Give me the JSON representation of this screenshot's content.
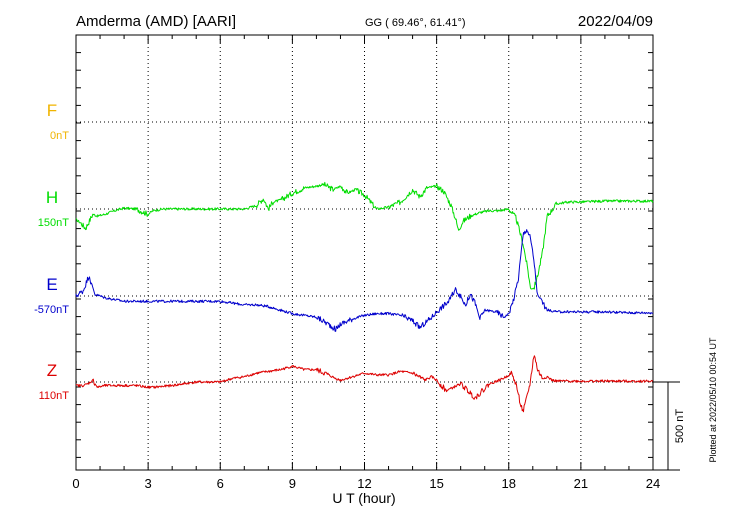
{
  "header": {
    "station": "Amderma (AMD)  [AARI]",
    "coords": "GG ( 69.46°,  61.41°)",
    "date": "2022/04/09"
  },
  "side_note": "Plotted at 2022/05/10 00:54 UT",
  "scale_label": "500 nT",
  "chart_data": {
    "type": "line",
    "xlabel": "U T (hour)",
    "xlim": [
      0,
      24
    ],
    "xticks": [
      "0",
      "3",
      "6",
      "9",
      "12",
      "15",
      "18",
      "21",
      "24"
    ],
    "y_units": "nT (offset from component baseline; 500 nT scale bar)",
    "scale_bar_nT": 500,
    "colors": {
      "F": "#f0b400",
      "H": "#00dd00",
      "E": "#0000cc",
      "Z": "#dd0000"
    },
    "components": [
      {
        "letter": "F",
        "baseline": "0nT"
      },
      {
        "letter": "H",
        "baseline": "150nT"
      },
      {
        "letter": "E",
        "baseline": "-570nT"
      },
      {
        "letter": "Z",
        "baseline": "110nT"
      }
    ],
    "series": [
      {
        "key": "H",
        "x": [
          0,
          0.2,
          0.4,
          0.55,
          0.7,
          0.9,
          1.2,
          1.6,
          2.0,
          2.5,
          3.0,
          3.2,
          3.6,
          4.2,
          5.0,
          5.5,
          6.0,
          6.5,
          7.0,
          7.5,
          7.8,
          8.0,
          8.2,
          8.5,
          9.0,
          9.5,
          10.0,
          10.3,
          10.7,
          11.0,
          11.3,
          11.6,
          12.0,
          12.5,
          13.0,
          13.5,
          14.0,
          14.3,
          14.6,
          15.0,
          15.3,
          15.6,
          15.8,
          15.9,
          16.1,
          16.4,
          16.8,
          17.2,
          17.6,
          18.0,
          18.3,
          18.6,
          18.8,
          18.9,
          19.05,
          19.2,
          19.4,
          19.6,
          20.0,
          20.5,
          21.0,
          22.0,
          23.0,
          24.0
        ],
        "y": [
          -60,
          -80,
          -110,
          -70,
          -30,
          -40,
          -30,
          -10,
          5,
          0,
          -30,
          -10,
          0,
          0,
          0,
          0,
          0,
          0,
          0,
          20,
          60,
          0,
          40,
          50,
          90,
          120,
          130,
          140,
          110,
          130,
          90,
          110,
          80,
          0,
          10,
          40,
          110,
          70,
          120,
          130,
          100,
          20,
          -60,
          -120,
          -70,
          -40,
          -20,
          -10,
          -10,
          0,
          -50,
          -200,
          -350,
          -450,
          -450,
          -380,
          -250,
          -40,
          30,
          40,
          40,
          45,
          45,
          45
        ]
      },
      {
        "key": "E",
        "x": [
          0,
          0.3,
          0.55,
          0.65,
          0.8,
          1.2,
          2.0,
          3.0,
          4.0,
          5.0,
          6.0,
          7.0,
          7.5,
          8.0,
          8.5,
          9.0,
          9.5,
          10.0,
          10.5,
          10.8,
          11.0,
          11.5,
          12.0,
          12.5,
          13.0,
          13.5,
          14.0,
          14.3,
          14.8,
          15.0,
          15.5,
          15.8,
          16.2,
          16.4,
          16.6,
          16.8,
          17.0,
          17.5,
          17.8,
          18.0,
          18.2,
          18.4,
          18.6,
          18.75,
          18.9,
          19.05,
          19.2,
          19.35,
          19.5,
          19.6,
          20.0,
          21.0,
          22.0,
          23.0,
          24.0
        ],
        "y": [
          0,
          30,
          120,
          60,
          10,
          -10,
          -30,
          -30,
          -30,
          -30,
          -30,
          -50,
          -50,
          -60,
          -80,
          -100,
          -110,
          -120,
          -160,
          -190,
          -160,
          -130,
          -110,
          -100,
          -100,
          -110,
          -140,
          -180,
          -120,
          -90,
          -30,
          40,
          -50,
          10,
          -40,
          -130,
          -80,
          -90,
          -120,
          -100,
          -20,
          100,
          350,
          380,
          330,
          200,
          0,
          -20,
          -60,
          -80,
          -90,
          -90,
          -90,
          -95,
          -95
        ]
      },
      {
        "key": "Z",
        "x": [
          0,
          0.3,
          0.5,
          0.7,
          0.9,
          1.2,
          2.0,
          2.5,
          3.0,
          3.2,
          4.0,
          5.0,
          6.0,
          6.5,
          7.0,
          7.5,
          8.0,
          8.5,
          9.0,
          9.5,
          10.0,
          10.5,
          10.8,
          11.0,
          11.5,
          12.0,
          12.5,
          13.0,
          13.5,
          14.0,
          14.5,
          14.8,
          15.0,
          15.2,
          15.4,
          15.7,
          16.0,
          16.3,
          16.6,
          16.9,
          17.2,
          17.6,
          17.9,
          18.1,
          18.3,
          18.5,
          18.6,
          18.75,
          18.9,
          19.05,
          19.2,
          19.4,
          19.6,
          19.8,
          20.0,
          21.0,
          22.0,
          23.0,
          24.0
        ],
        "y": [
          -20,
          -20,
          -10,
          10,
          -30,
          -20,
          -20,
          -20,
          -30,
          -30,
          -20,
          0,
          0,
          20,
          30,
          50,
          60,
          70,
          90,
          70,
          70,
          40,
          20,
          10,
          30,
          50,
          40,
          40,
          60,
          50,
          10,
          30,
          10,
          -20,
          -50,
          -30,
          -10,
          -50,
          -90,
          -50,
          -10,
          10,
          30,
          50,
          -10,
          -130,
          -170,
          -90,
          0,
          160,
          70,
          20,
          30,
          10,
          5,
          5,
          5,
          5,
          5
        ]
      }
    ]
  }
}
